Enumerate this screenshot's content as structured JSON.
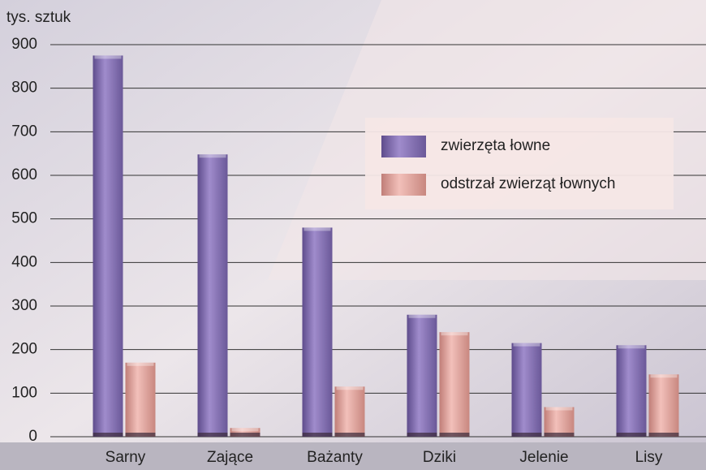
{
  "chart_data": {
    "type": "bar",
    "y_label": "tys. sztuk",
    "categories": [
      "Sarny",
      "Zające",
      "Bażanty",
      "Dziki",
      "Jelenie",
      "Lisy"
    ],
    "series": [
      {
        "name": "zwierzęta łowne",
        "color": "#8a76b4",
        "values": [
          875,
          648,
          480,
          280,
          215,
          210
        ]
      },
      {
        "name": "odstrzał zwierząt łownych",
        "color": "#e5a9a3",
        "values": [
          170,
          20,
          115,
          240,
          68,
          143
        ]
      }
    ],
    "ylim": [
      0,
      900
    ],
    "yticks": [
      0,
      100,
      200,
      300,
      400,
      500,
      600,
      700,
      800,
      900
    ],
    "grid": true
  }
}
